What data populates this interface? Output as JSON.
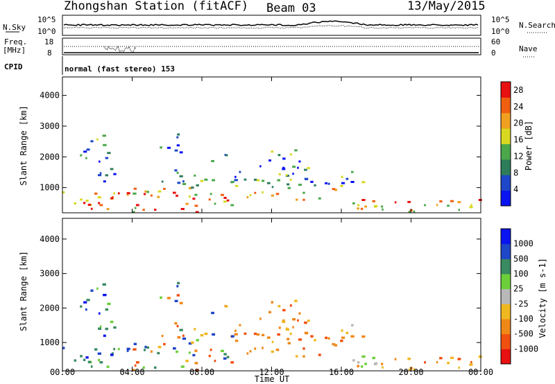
{
  "header": {
    "station": "Zhongshan Station (fitACF)",
    "beam": "Beam 03",
    "date": "13/May/2015"
  },
  "top_panels": {
    "nsky_label": "N.Sky",
    "nsearch_label": "N.Search",
    "noise_ticks_left": [
      "10^5",
      "10^0"
    ],
    "noise_ticks_right": [
      "10^5",
      "10^0"
    ],
    "freq_label": "Freq.",
    "freq_unit": "[MHz]",
    "freq_ticks": [
      "18",
      "8"
    ],
    "nave_label": "Nave",
    "nave_ticks": [
      "60",
      "0"
    ],
    "cpid_label": "CPID",
    "cpid_text": "normal (fast stereo) 153"
  },
  "colors": {
    "power_scale": [
      "#0a14f0",
      "#1e46c8",
      "#2e7d5a",
      "#4aa84a",
      "#d8d820",
      "#f0a020",
      "#f06010",
      "#e81010"
    ],
    "velocity_scale": [
      "#e81010",
      "#f05010",
      "#f08818",
      "#f0b820",
      "#b8b8b8",
      "#6ccf3a",
      "#3a8a62",
      "#1e46c8",
      "#0a14f0"
    ]
  },
  "chart_data": [
    {
      "type": "heatmap",
      "name": "power",
      "ylabel": "Slant Range [km]",
      "xlabel": "Time UT",
      "x_ticks": [
        "00:00",
        "04:00",
        "08:00",
        "12:00",
        "16:00",
        "20:00",
        "00:00"
      ],
      "y_ticks": [
        1000,
        2000,
        3000,
        4000
      ],
      "ylim": [
        180,
        4600
      ],
      "colorbar_label": "Power [dB]",
      "colorbar_ticks": [
        4,
        8,
        12,
        16,
        20,
        24,
        28
      ],
      "colorbar_range": [
        0,
        30
      ]
    },
    {
      "type": "heatmap",
      "name": "velocity",
      "ylabel": "Slant Range [km]",
      "xlabel": "Time UT",
      "x_ticks": [
        "00:00",
        "04:00",
        "08:00",
        "12:00",
        "16:00",
        "20:00",
        "00:00"
      ],
      "y_ticks": [
        1000,
        2000,
        3000,
        4000
      ],
      "ylim": [
        180,
        4600
      ],
      "colorbar_label": "Velocity [m s-1]",
      "colorbar_ticks": [
        "1000",
        "500",
        "100",
        "25",
        "-25",
        "-100",
        "-500",
        "-1000"
      ]
    }
  ]
}
